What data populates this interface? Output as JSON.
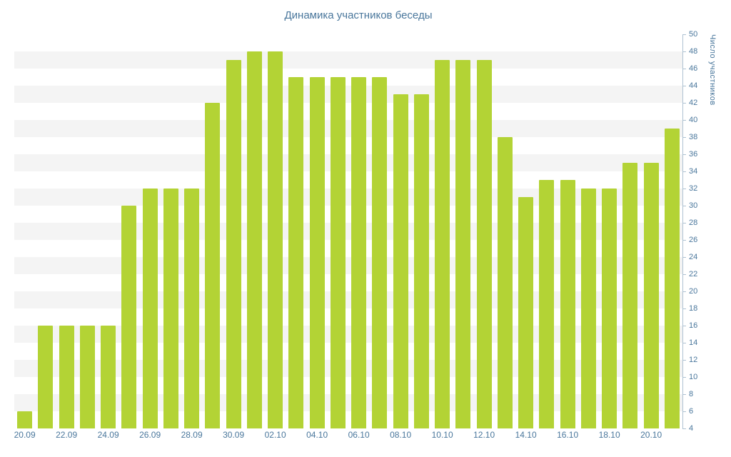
{
  "title": "Динамика участников беседы",
  "colors": {
    "bar": "#b3d335",
    "axis_text": "#4a779c",
    "title_text": "#4a779c",
    "axis_line": "#aec2d2",
    "stripe": "#f4f4f4"
  },
  "chart_data": {
    "type": "bar",
    "title": "Динамика участников беседы",
    "xlabel": "",
    "ylabel": "Число участников",
    "ylim": [
      4,
      50
    ],
    "ytick_step": 2,
    "xtick_every": 2,
    "grid": "striped-horizontal-bands",
    "legend": "none",
    "y_axis_position": "right",
    "categories": [
      "20.09",
      "21.09",
      "22.09",
      "23.09",
      "24.09",
      "25.09",
      "26.09",
      "27.09",
      "28.09",
      "29.09",
      "30.09",
      "01.10",
      "02.10",
      "03.10",
      "04.10",
      "05.10",
      "06.10",
      "07.10",
      "08.10",
      "09.10",
      "10.10",
      "11.10",
      "12.10",
      "13.10",
      "14.10",
      "15.10",
      "16.10",
      "17.10",
      "18.10",
      "19.10",
      "20.10",
      "21.10"
    ],
    "values": [
      6,
      16,
      16,
      16,
      16,
      30,
      32,
      32,
      32,
      42,
      47,
      48,
      48,
      45,
      45,
      45,
      45,
      45,
      43,
      43,
      47,
      47,
      47,
      38,
      31,
      33,
      33,
      32,
      32,
      35,
      35,
      39
    ]
  }
}
